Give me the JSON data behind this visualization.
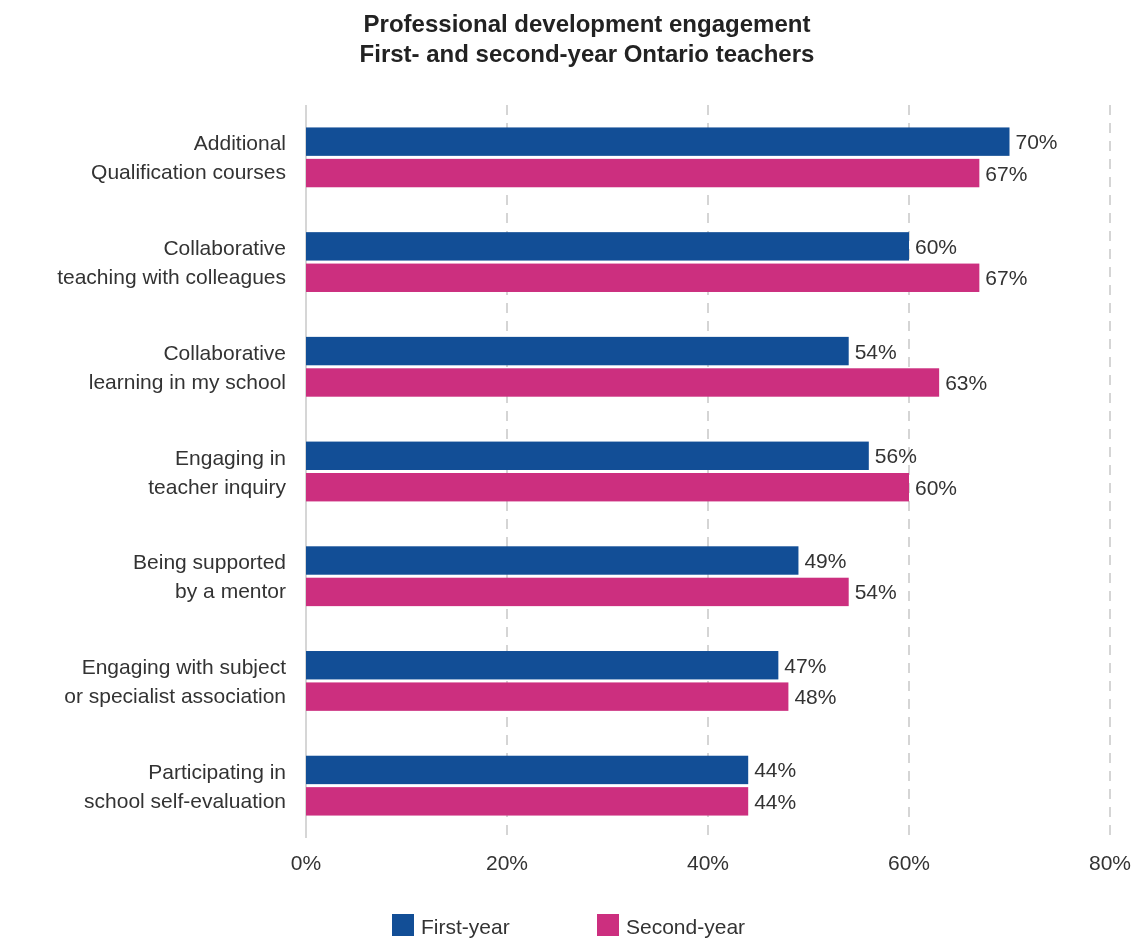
{
  "chart_data": {
    "type": "bar",
    "orientation": "horizontal",
    "title": "Professional development engagement\nFirst- and second-year Ontario teachers",
    "categories": [
      "Additional\nQualification courses",
      "Collaborative\nteaching with colleagues",
      "Collaborative\nlearning in my school",
      "Engaging in\nteacher inquiry",
      "Being supported\nby a mentor",
      "Engaging with subject\nor specialist association",
      "Participating in\nschool self-evaluation"
    ],
    "series": [
      {
        "name": "First-year",
        "color": "#124e96",
        "values": [
          70,
          60,
          54,
          56,
          49,
          47,
          44
        ],
        "value_labels": [
          "70%",
          "60%",
          "54%",
          "56%",
          "49%",
          "47%",
          "44%"
        ]
      },
      {
        "name": "Second-year",
        "color": "#cc2f7f",
        "values": [
          67,
          67,
          63,
          60,
          54,
          48,
          44
        ],
        "value_labels": [
          "67%",
          "67%",
          "63%",
          "60%",
          "54%",
          "48%",
          "44%"
        ]
      }
    ],
    "xlim": [
      0,
      80
    ],
    "xticks": [
      {
        "value": 0,
        "label": "0%"
      },
      {
        "value": 20,
        "label": "20%"
      },
      {
        "value": 40,
        "label": "40%"
      },
      {
        "value": 60,
        "label": "60%"
      },
      {
        "value": 80,
        "label": "80%"
      }
    ],
    "grid": "x",
    "legend": "bottom"
  }
}
